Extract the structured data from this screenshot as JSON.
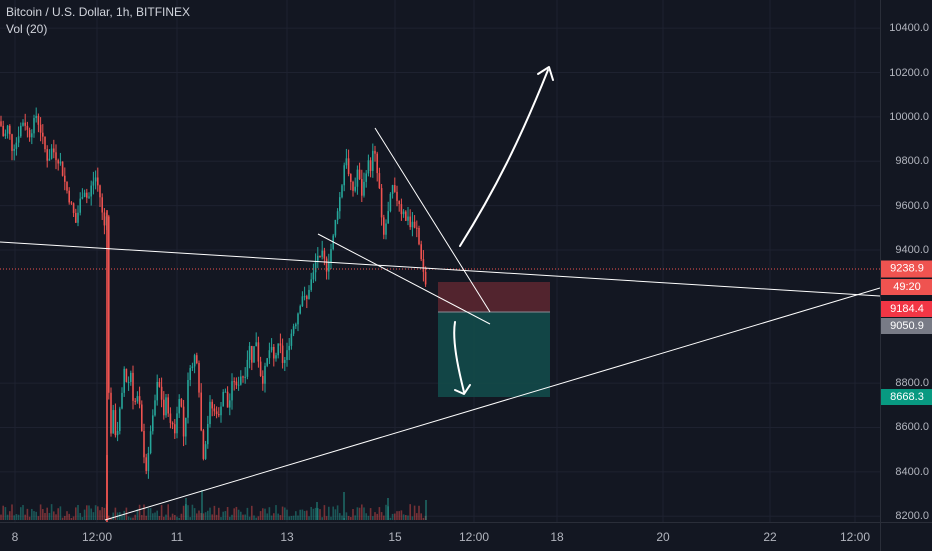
{
  "legend": {
    "symbol": "Bitcoin / U.S. Dollar, 1h, BITFINEX",
    "volume": "Vol (20)"
  },
  "price_axis": {
    "ticks": [
      "10400.0",
      "10200.0",
      "10000.0",
      "9800.0",
      "9600.0",
      "9400.0",
      "8800.0",
      "8600.0",
      "8400.0",
      "8200.0"
    ],
    "tick_values": [
      10400,
      10200,
      10000,
      9800,
      9600,
      9400,
      8800,
      8600,
      8400,
      8200
    ],
    "current_price": "9238.9",
    "countdown": "49:20",
    "stop_price": "9184.4",
    "entry_price": "9050.9",
    "target_price": "8668.3"
  },
  "time_axis": {
    "labels": [
      "8",
      "12:00",
      "11",
      "13",
      "15",
      "12:00",
      "18",
      "20",
      "22",
      "12:00"
    ]
  },
  "colors": {
    "background": "#131722",
    "grid": "#1e2230",
    "up_candle": "#26a69a",
    "down_candle": "#ef5350",
    "current_price_label": "#ef5350",
    "stop_label": "#f23645",
    "entry_label": "#787b86",
    "target_label": "#089981",
    "stop_zone": "#5a2630",
    "target_zone": "#134a4a",
    "drawing": "#ffffff"
  },
  "chart_data": {
    "type": "candlestick",
    "symbol": "Bitcoin / U.S. Dollar",
    "interval": "1h",
    "exchange": "BITFINEX",
    "ylim": [
      8100,
      10430
    ],
    "grid": true,
    "close_path": [
      [
        0,
        9980
      ],
      [
        4,
        9900
      ],
      [
        8,
        9960
      ],
      [
        12,
        9860
      ],
      [
        16,
        9880
      ],
      [
        20,
        9950
      ],
      [
        24,
        9990
      ],
      [
        27,
        9940
      ],
      [
        30,
        9920
      ],
      [
        33,
        9960
      ],
      [
        36,
        10010
      ],
      [
        40,
        9950
      ],
      [
        44,
        9870
      ],
      [
        48,
        9800
      ],
      [
        52,
        9860
      ],
      [
        56,
        9820
      ],
      [
        60,
        9800
      ],
      [
        64,
        9720
      ],
      [
        68,
        9650
      ],
      [
        72,
        9590
      ],
      [
        76,
        9520
      ],
      [
        80,
        9620
      ],
      [
        84,
        9680
      ],
      [
        88,
        9620
      ],
      [
        92,
        9700
      ],
      [
        96,
        9730
      ],
      [
        100,
        9640
      ],
      [
        104,
        9500
      ],
      [
        107,
        9580
      ],
      [
        108,
        8950
      ],
      [
        110,
        8450
      ],
      [
        112,
        8720
      ],
      [
        114,
        8620
      ],
      [
        116,
        8560
      ],
      [
        118,
        8600
      ],
      [
        120,
        8680
      ],
      [
        122,
        8740
      ],
      [
        124,
        8870
      ],
      [
        126,
        8820
      ],
      [
        128,
        8780
      ],
      [
        130,
        8870
      ],
      [
        132,
        8820
      ],
      [
        134,
        8650
      ],
      [
        136,
        8760
      ],
      [
        138,
        8720
      ],
      [
        140,
        8680
      ],
      [
        142,
        8560
      ],
      [
        144,
        8480
      ],
      [
        146,
        8410
      ],
      [
        148,
        8440
      ],
      [
        150,
        8580
      ],
      [
        152,
        8620
      ],
      [
        154,
        8660
      ],
      [
        156,
        8780
      ],
      [
        158,
        8800
      ],
      [
        160,
        8770
      ],
      [
        162,
        8720
      ],
      [
        164,
        8650
      ],
      [
        166,
        8720
      ],
      [
        168,
        8690
      ],
      [
        170,
        8600
      ],
      [
        172,
        8640
      ],
      [
        174,
        8560
      ],
      [
        176,
        8620
      ],
      [
        178,
        8700
      ],
      [
        180,
        8780
      ],
      [
        182,
        8650
      ],
      [
        184,
        8540
      ],
      [
        186,
        8670
      ],
      [
        188,
        8800
      ],
      [
        190,
        8890
      ],
      [
        192,
        8860
      ],
      [
        194,
        8910
      ],
      [
        196,
        8950
      ],
      [
        198,
        8850
      ],
      [
        200,
        8700
      ],
      [
        202,
        8510
      ],
      [
        204,
        8460
      ],
      [
        206,
        8560
      ],
      [
        208,
        8630
      ],
      [
        210,
        8700
      ],
      [
        212,
        8690
      ],
      [
        214,
        8660
      ],
      [
        216,
        8700
      ],
      [
        218,
        8620
      ],
      [
        220,
        8680
      ],
      [
        222,
        8740
      ],
      [
        224,
        8780
      ],
      [
        226,
        8740
      ],
      [
        228,
        8680
      ],
      [
        230,
        8730
      ],
      [
        232,
        8790
      ],
      [
        234,
        8820
      ],
      [
        236,
        8770
      ],
      [
        238,
        8800
      ],
      [
        240,
        8820
      ],
      [
        242,
        8860
      ],
      [
        244,
        8800
      ],
      [
        246,
        8880
      ],
      [
        248,
        8930
      ],
      [
        250,
        8970
      ],
      [
        252,
        8900
      ],
      [
        254,
        8960
      ],
      [
        256,
        9000
      ],
      [
        258,
        8920
      ],
      [
        260,
        8860
      ],
      [
        262,
        8800
      ],
      [
        264,
        8840
      ],
      [
        266,
        8880
      ],
      [
        268,
        8920
      ],
      [
        270,
        8960
      ],
      [
        272,
        8940
      ],
      [
        274,
        8900
      ],
      [
        276,
        8930
      ],
      [
        278,
        8960
      ],
      [
        280,
        8970
      ],
      [
        282,
        8900
      ],
      [
        284,
        8890
      ],
      [
        286,
        8920
      ],
      [
        288,
        8950
      ],
      [
        290,
        9010
      ],
      [
        292,
        9030
      ],
      [
        294,
        9070
      ],
      [
        296,
        9080
      ],
      [
        298,
        9120
      ],
      [
        300,
        9160
      ],
      [
        302,
        9200
      ],
      [
        304,
        9190
      ],
      [
        306,
        9150
      ],
      [
        308,
        9210
      ],
      [
        310,
        9250
      ],
      [
        312,
        9270
      ],
      [
        314,
        9300
      ],
      [
        316,
        9360
      ],
      [
        318,
        9380
      ],
      [
        320,
        9350
      ],
      [
        322,
        9380
      ],
      [
        324,
        9360
      ],
      [
        326,
        9310
      ],
      [
        328,
        9340
      ],
      [
        330,
        9390
      ],
      [
        332,
        9420
      ],
      [
        334,
        9480
      ],
      [
        336,
        9550
      ],
      [
        338,
        9600
      ],
      [
        340,
        9640
      ],
      [
        342,
        9700
      ],
      [
        344,
        9780
      ],
      [
        346,
        9840
      ],
      [
        348,
        9760
      ],
      [
        350,
        9680
      ],
      [
        352,
        9700
      ],
      [
        354,
        9640
      ],
      [
        356,
        9720
      ],
      [
        358,
        9780
      ],
      [
        360,
        9690
      ],
      [
        362,
        9650
      ],
      [
        364,
        9700
      ],
      [
        366,
        9760
      ],
      [
        368,
        9800
      ],
      [
        370,
        9750
      ],
      [
        372,
        9820
      ],
      [
        374,
        9860
      ],
      [
        376,
        9780
      ],
      [
        378,
        9720
      ],
      [
        380,
        9650
      ],
      [
        382,
        9500
      ],
      [
        384,
        9460
      ],
      [
        386,
        9520
      ],
      [
        388,
        9560
      ],
      [
        390,
        9620
      ],
      [
        392,
        9690
      ],
      [
        394,
        9660
      ],
      [
        396,
        9620
      ],
      [
        398,
        9640
      ],
      [
        400,
        9600
      ],
      [
        402,
        9560
      ],
      [
        404,
        9590
      ],
      [
        406,
        9520
      ],
      [
        408,
        9560
      ],
      [
        410,
        9500
      ],
      [
        412,
        9540
      ],
      [
        414,
        9480
      ],
      [
        416,
        9520
      ],
      [
        418,
        9450
      ],
      [
        420,
        9400
      ],
      [
        422,
        9350
      ],
      [
        424,
        9280
      ],
      [
        426,
        9240
      ]
    ],
    "annotations": {
      "long_short_position": {
        "stop": 9184.4,
        "entry": 9050.9,
        "target": 8668.3
      }
    }
  }
}
